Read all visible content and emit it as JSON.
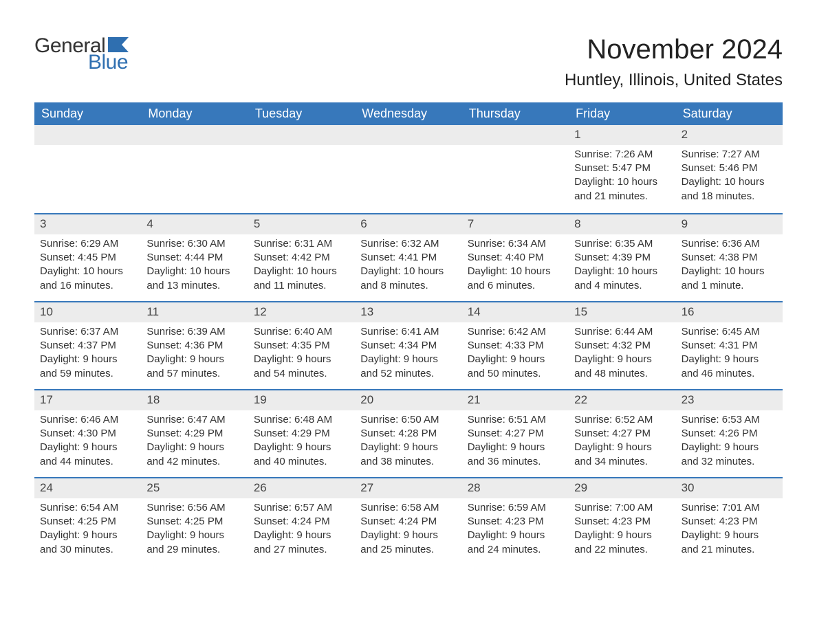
{
  "logo": {
    "text_general": "General",
    "text_blue": "Blue",
    "flag_color": "#2f6fb0"
  },
  "title": "November 2024",
  "location": "Huntley, Illinois, United States",
  "colors": {
    "header_bg": "#3778bb",
    "header_text": "#ffffff",
    "daynum_bg": "#ececec",
    "week_border": "#3778bb",
    "body_text": "#333333",
    "background": "#ffffff"
  },
  "typography": {
    "title_fontsize": 40,
    "location_fontsize": 24,
    "header_fontsize": 18,
    "daynum_fontsize": 17,
    "cell_fontsize": 15
  },
  "days_of_week": [
    "Sunday",
    "Monday",
    "Tuesday",
    "Wednesday",
    "Thursday",
    "Friday",
    "Saturday"
  ],
  "labels": {
    "sunrise": "Sunrise:",
    "sunset": "Sunset:",
    "daylight": "Daylight:"
  },
  "weeks": [
    [
      null,
      null,
      null,
      null,
      null,
      {
        "n": "1",
        "sunrise": "7:26 AM",
        "sunset": "5:47 PM",
        "daylight": "10 hours and 21 minutes."
      },
      {
        "n": "2",
        "sunrise": "7:27 AM",
        "sunset": "5:46 PM",
        "daylight": "10 hours and 18 minutes."
      }
    ],
    [
      {
        "n": "3",
        "sunrise": "6:29 AM",
        "sunset": "4:45 PM",
        "daylight": "10 hours and 16 minutes."
      },
      {
        "n": "4",
        "sunrise": "6:30 AM",
        "sunset": "4:44 PM",
        "daylight": "10 hours and 13 minutes."
      },
      {
        "n": "5",
        "sunrise": "6:31 AM",
        "sunset": "4:42 PM",
        "daylight": "10 hours and 11 minutes."
      },
      {
        "n": "6",
        "sunrise": "6:32 AM",
        "sunset": "4:41 PM",
        "daylight": "10 hours and 8 minutes."
      },
      {
        "n": "7",
        "sunrise": "6:34 AM",
        "sunset": "4:40 PM",
        "daylight": "10 hours and 6 minutes."
      },
      {
        "n": "8",
        "sunrise": "6:35 AM",
        "sunset": "4:39 PM",
        "daylight": "10 hours and 4 minutes."
      },
      {
        "n": "9",
        "sunrise": "6:36 AM",
        "sunset": "4:38 PM",
        "daylight": "10 hours and 1 minute."
      }
    ],
    [
      {
        "n": "10",
        "sunrise": "6:37 AM",
        "sunset": "4:37 PM",
        "daylight": "9 hours and 59 minutes."
      },
      {
        "n": "11",
        "sunrise": "6:39 AM",
        "sunset": "4:36 PM",
        "daylight": "9 hours and 57 minutes."
      },
      {
        "n": "12",
        "sunrise": "6:40 AM",
        "sunset": "4:35 PM",
        "daylight": "9 hours and 54 minutes."
      },
      {
        "n": "13",
        "sunrise": "6:41 AM",
        "sunset": "4:34 PM",
        "daylight": "9 hours and 52 minutes."
      },
      {
        "n": "14",
        "sunrise": "6:42 AM",
        "sunset": "4:33 PM",
        "daylight": "9 hours and 50 minutes."
      },
      {
        "n": "15",
        "sunrise": "6:44 AM",
        "sunset": "4:32 PM",
        "daylight": "9 hours and 48 minutes."
      },
      {
        "n": "16",
        "sunrise": "6:45 AM",
        "sunset": "4:31 PM",
        "daylight": "9 hours and 46 minutes."
      }
    ],
    [
      {
        "n": "17",
        "sunrise": "6:46 AM",
        "sunset": "4:30 PM",
        "daylight": "9 hours and 44 minutes."
      },
      {
        "n": "18",
        "sunrise": "6:47 AM",
        "sunset": "4:29 PM",
        "daylight": "9 hours and 42 minutes."
      },
      {
        "n": "19",
        "sunrise": "6:48 AM",
        "sunset": "4:29 PM",
        "daylight": "9 hours and 40 minutes."
      },
      {
        "n": "20",
        "sunrise": "6:50 AM",
        "sunset": "4:28 PM",
        "daylight": "9 hours and 38 minutes."
      },
      {
        "n": "21",
        "sunrise": "6:51 AM",
        "sunset": "4:27 PM",
        "daylight": "9 hours and 36 minutes."
      },
      {
        "n": "22",
        "sunrise": "6:52 AM",
        "sunset": "4:27 PM",
        "daylight": "9 hours and 34 minutes."
      },
      {
        "n": "23",
        "sunrise": "6:53 AM",
        "sunset": "4:26 PM",
        "daylight": "9 hours and 32 minutes."
      }
    ],
    [
      {
        "n": "24",
        "sunrise": "6:54 AM",
        "sunset": "4:25 PM",
        "daylight": "9 hours and 30 minutes."
      },
      {
        "n": "25",
        "sunrise": "6:56 AM",
        "sunset": "4:25 PM",
        "daylight": "9 hours and 29 minutes."
      },
      {
        "n": "26",
        "sunrise": "6:57 AM",
        "sunset": "4:24 PM",
        "daylight": "9 hours and 27 minutes."
      },
      {
        "n": "27",
        "sunrise": "6:58 AM",
        "sunset": "4:24 PM",
        "daylight": "9 hours and 25 minutes."
      },
      {
        "n": "28",
        "sunrise": "6:59 AM",
        "sunset": "4:23 PM",
        "daylight": "9 hours and 24 minutes."
      },
      {
        "n": "29",
        "sunrise": "7:00 AM",
        "sunset": "4:23 PM",
        "daylight": "9 hours and 22 minutes."
      },
      {
        "n": "30",
        "sunrise": "7:01 AM",
        "sunset": "4:23 PM",
        "daylight": "9 hours and 21 minutes."
      }
    ]
  ]
}
